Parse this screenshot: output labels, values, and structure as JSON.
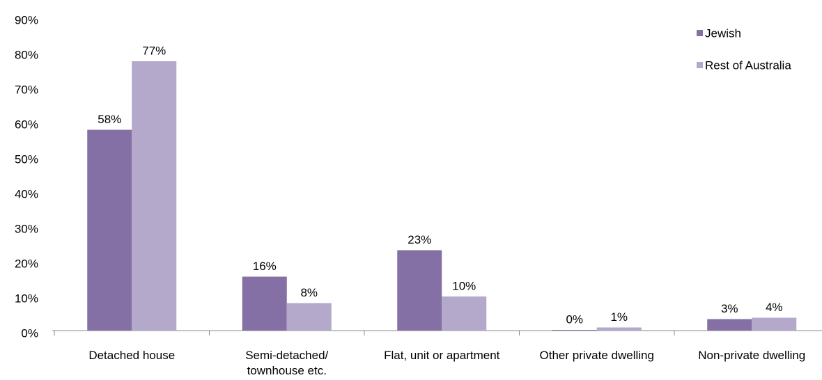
{
  "chart_data": {
    "type": "bar",
    "categories": [
      "Detached house",
      "Semi-detached/ townhouse etc.",
      "Flat, unit or apartment",
      "Other private dwelling",
      "Non-private dwelling"
    ],
    "series": [
      {
        "name": "Jewish",
        "color": "#8470a4",
        "values": [
          57.7,
          15.5,
          23.1,
          0.2,
          3.3
        ],
        "value_labels": [
          "58%",
          "16%",
          "23%",
          "0%",
          "3%"
        ]
      },
      {
        "name": "Rest of Australia",
        "color": "#b4a8cb",
        "values": [
          77.4,
          7.9,
          9.8,
          0.9,
          3.7
        ],
        "value_labels": [
          "77%",
          "8%",
          "10%",
          "1%",
          "4%"
        ]
      }
    ],
    "ylim": [
      0,
      90
    ],
    "yticks": [
      {
        "value": 0,
        "label": "0%"
      },
      {
        "value": 10,
        "label": "10%"
      },
      {
        "value": 20,
        "label": "20%"
      },
      {
        "value": 30,
        "label": "30%"
      },
      {
        "value": 40,
        "label": "40%"
      },
      {
        "value": 50,
        "label": "50%"
      },
      {
        "value": 60,
        "label": "60%"
      },
      {
        "value": 70,
        "label": "70%"
      },
      {
        "value": 80,
        "label": "80%"
      },
      {
        "value": 90,
        "label": "90%"
      }
    ],
    "grid": false,
    "legend": "top-right"
  }
}
